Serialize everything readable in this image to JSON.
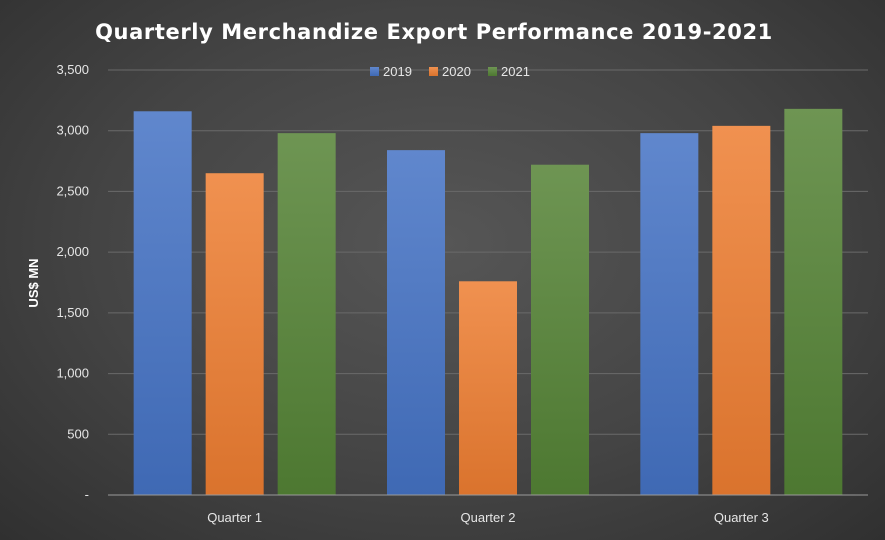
{
  "chart_data": {
    "type": "bar",
    "title": "Quarterly Merchandize Export Performance 2019-2021",
    "ylabel": "US$ MN",
    "xlabel": "",
    "categories": [
      "Quarter 1",
      "Quarter 2",
      "Quarter 3"
    ],
    "series": [
      {
        "name": "2019",
        "color": "#4472c4",
        "values": [
          3160,
          2840,
          2980
        ]
      },
      {
        "name": "2020",
        "color": "#ed7d31",
        "values": [
          2650,
          1760,
          3040
        ]
      },
      {
        "name": "2021",
        "color": "#548235",
        "values": [
          2980,
          2720,
          3180
        ]
      }
    ],
    "ylim": [
      0,
      3500
    ],
    "yticks": [
      0,
      500,
      1000,
      1500,
      2000,
      2500,
      3000,
      3500
    ],
    "ytick_labels": [
      "-",
      "500",
      "1,000",
      "1,500",
      "2,000",
      "2,500",
      "3,000",
      "3,500"
    ],
    "grid": true,
    "legend_position": "top-center"
  }
}
